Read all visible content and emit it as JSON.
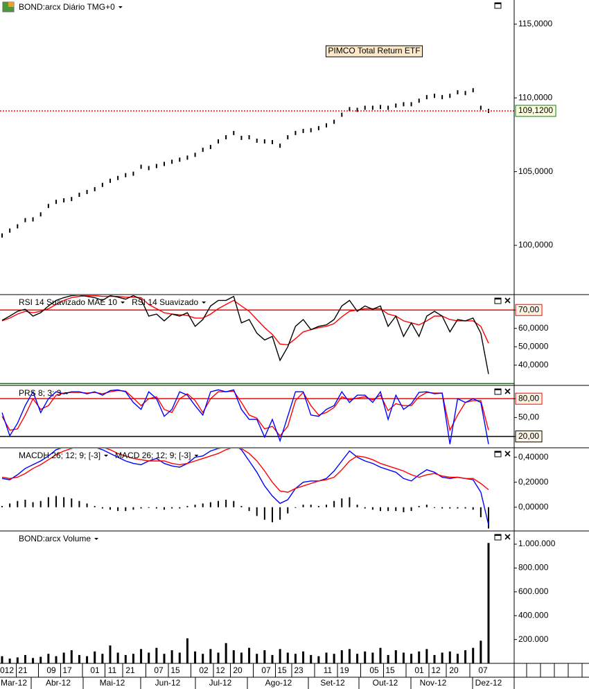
{
  "chart_data": [
    {
      "type": "dot",
      "title": "BOND:arcx Diário TMG+0",
      "annotation": "PIMCO Total Return ETF",
      "color": "#000000",
      "last": {
        "value": 109.12,
        "label": "109,1200",
        "color": "#ff0000"
      },
      "values": [
        100.67,
        101.0,
        101.29,
        101.71,
        101.76,
        102.1,
        102.67,
        102.95,
        103.05,
        103.14,
        103.43,
        103.62,
        103.81,
        104.1,
        104.38,
        104.57,
        104.76,
        104.86,
        105.33,
        105.24,
        105.38,
        105.52,
        105.67,
        105.81,
        105.95,
        106.14,
        106.48,
        106.67,
        107.05,
        107.33,
        107.62,
        107.29,
        107.33,
        107.1,
        107.05,
        107.0,
        106.76,
        107.33,
        107.62,
        107.76,
        107.81,
        107.95,
        108.14,
        108.38,
        108.86,
        109.24,
        109.19,
        109.33,
        109.33,
        109.38,
        109.33,
        109.48,
        109.57,
        109.57,
        109.81,
        110.05,
        110.14,
        110.05,
        110.14,
        110.38,
        110.33,
        110.52,
        109.33,
        109.12
      ],
      "ylim": [
        96.66,
        116.64
      ],
      "yticks": [
        {
          "value": 100,
          "label": "100,0000"
        },
        {
          "value": 105,
          "label": "105,0000"
        },
        {
          "value": 110,
          "label": "110,0000"
        },
        {
          "value": 115,
          "label": "115,0000"
        }
      ]
    },
    {
      "type": "line",
      "series": [
        {
          "name": "RSI 14 Suavizado MAE 10",
          "color": "#ff0000",
          "values": [
            64.1,
            65.6,
            67.8,
            69.3,
            68.5,
            69.3,
            70.7,
            73,
            75.2,
            76.7,
            77.4,
            77.8,
            77.8,
            77.4,
            77.4,
            77.4,
            77,
            77,
            76.7,
            73,
            70.7,
            68.5,
            67.8,
            67.4,
            67,
            65.6,
            65.6,
            67.8,
            70.7,
            73,
            75.2,
            72.2,
            69.3,
            64.8,
            60.4,
            56.7,
            51.5,
            51.1,
            54.4,
            58.1,
            59.3,
            60.4,
            61.1,
            62.6,
            66.3,
            69.3,
            70,
            70.7,
            70.7,
            70.7,
            67.8,
            66.7,
            64.1,
            63,
            61.9,
            64.1,
            66.7,
            66.7,
            64.8,
            64.1,
            64.1,
            64.1,
            61.1,
            51.9
          ]
        },
        {
          "name": "RSI 14 Suavizado",
          "color": "#000000",
          "values": [
            64.4,
            66.7,
            69.3,
            70.4,
            66.7,
            68.5,
            72.2,
            75.2,
            76.7,
            77.8,
            78.1,
            77.4,
            76.7,
            75.2,
            77.8,
            77,
            75.9,
            77.8,
            75.9,
            66.7,
            67.8,
            64.1,
            67.8,
            66.7,
            68.5,
            61.1,
            64.8,
            72.2,
            75.2,
            75.2,
            77.4,
            63,
            64.8,
            57.4,
            53.7,
            55.6,
            42.6,
            50,
            61.1,
            64.8,
            59.3,
            61.1,
            61.9,
            64.8,
            72.2,
            75.2,
            69.3,
            72.2,
            70.4,
            72.2,
            61.1,
            66.7,
            55.6,
            63,
            55.6,
            66.7,
            69.3,
            66.7,
            58.1,
            64.8,
            64.1,
            65.6,
            57.4,
            35.2
          ]
        }
      ],
      "levels": [
        {
          "value": 70,
          "color": "#ff0000"
        },
        {
          "value": 30,
          "color": "#008000"
        }
      ],
      "ylim": [
        29,
        78
      ],
      "yticks": [
        {
          "value": 40,
          "label": "40,0000"
        },
        {
          "value": 50,
          "label": "50,0000"
        },
        {
          "value": 60,
          "label": "60,0000"
        },
        {
          "value": 70,
          "label": "70,00"
        }
      ]
    },
    {
      "type": "line",
      "series": [
        {
          "color": "#ff0000",
          "values": [
            52,
            30,
            32,
            54,
            80,
            63,
            69,
            85.6,
            88.9,
            90,
            90,
            88.9,
            90,
            87.8,
            91,
            93,
            92,
            81,
            69,
            80,
            83,
            63,
            58,
            80,
            87.8,
            77,
            58,
            80,
            91,
            91,
            92,
            74,
            54,
            49,
            32,
            36,
            21,
            36,
            77,
            90,
            69,
            54,
            58,
            66,
            83,
            78,
            81,
            83,
            78,
            85.6,
            61,
            72,
            69,
            69,
            83,
            90,
            88.9,
            88.9,
            30,
            54,
            74,
            77,
            77,
            30
          ]
        },
        {
          "name": "PRS 8; 3; 3",
          "color": "#0000ff",
          "values": [
            57.8,
            21.1,
            41,
            68.9,
            91,
            57.8,
            80,
            91,
            87.8,
            91,
            91,
            87.8,
            91,
            85.6,
            93,
            94,
            91,
            74,
            63,
            91,
            80,
            52,
            63,
            91,
            85.6,
            69,
            54,
            91,
            94,
            91,
            94,
            63,
            47,
            47,
            19,
            47,
            13,
            52,
            91,
            91,
            54,
            52,
            63,
            69,
            91,
            74,
            85.6,
            85.6,
            74,
            91,
            47,
            85.6,
            63,
            72,
            90,
            91,
            87.8,
            88.9,
            7.8,
            80,
            74,
            80,
            74,
            7.8
          ]
        }
      ],
      "levels": [
        {
          "value": 80,
          "color": "#ff0000"
        },
        {
          "value": 20,
          "color": "#000000"
        }
      ],
      "ylim": [
        2,
        100
      ],
      "yticks": [
        {
          "value": 20,
          "label": "20,00"
        },
        {
          "value": 50,
          "label": "50,00"
        },
        {
          "value": 80,
          "label": "80,00"
        }
      ]
    },
    {
      "type": "line",
      "series": [
        {
          "name": "MACDH 26; 12; 9; [-3]",
          "type": "bar",
          "color": "#000000",
          "values": [
            0.01,
            0.03,
            0.05,
            0.06,
            0.04,
            0.05,
            0.08,
            0.09,
            0.08,
            0.07,
            0.05,
            0.03,
            0.01,
            -0.01,
            -0.02,
            -0.03,
            -0.03,
            -0.02,
            -0.01,
            0.0,
            -0.01,
            -0.02,
            -0.01,
            -0.01,
            0.01,
            0.02,
            0.03,
            0.04,
            0.05,
            0.06,
            0.05,
            0.01,
            -0.03,
            -0.07,
            -0.1,
            -0.12,
            -0.1,
            -0.05,
            0.0,
            0.02,
            0.02,
            0.01,
            0.02,
            0.05,
            0.07,
            0.08,
            0.02,
            -0.01,
            -0.02,
            -0.03,
            -0.03,
            -0.03,
            -0.04,
            -0.03,
            0.01,
            0.02,
            0.0,
            -0.01,
            -0.01,
            -0.01,
            -0.01,
            -0.02,
            -0.08,
            -0.17
          ]
        },
        {
          "name": "MACD 26; 12; 9; [-3]",
          "color": "#0000ff",
          "values": [
            0.23,
            0.22,
            0.26,
            0.31,
            0.34,
            0.37,
            0.41,
            0.46,
            0.48,
            0.5,
            0.51,
            0.52,
            0.48,
            0.46,
            0.43,
            0.4,
            0.37,
            0.35,
            0.34,
            0.37,
            0.39,
            0.35,
            0.33,
            0.32,
            0.35,
            0.4,
            0.41,
            0.45,
            0.47,
            0.48,
            0.5,
            0.46,
            0.37,
            0.28,
            0.17,
            0.09,
            0.03,
            0.06,
            0.15,
            0.2,
            0.21,
            0.21,
            0.23,
            0.29,
            0.37,
            0.45,
            0.4,
            0.37,
            0.35,
            0.32,
            0.3,
            0.28,
            0.23,
            0.21,
            0.26,
            0.3,
            0.28,
            0.24,
            0.23,
            0.24,
            0.23,
            0.22,
            0.12,
            -0.14
          ]
        },
        {
          "color": "#ff0000",
          "values": [
            0.24,
            0.23,
            0.24,
            0.27,
            0.31,
            0.34,
            0.38,
            0.42,
            0.45,
            0.47,
            0.49,
            0.5,
            0.5,
            0.48,
            0.46,
            0.43,
            0.41,
            0.39,
            0.38,
            0.37,
            0.37,
            0.37,
            0.35,
            0.34,
            0.35,
            0.37,
            0.39,
            0.41,
            0.43,
            0.46,
            0.48,
            0.47,
            0.43,
            0.37,
            0.29,
            0.2,
            0.13,
            0.12,
            0.15,
            0.17,
            0.19,
            0.21,
            0.22,
            0.24,
            0.3,
            0.37,
            0.41,
            0.4,
            0.38,
            0.35,
            0.33,
            0.31,
            0.29,
            0.26,
            0.24,
            0.26,
            0.27,
            0.25,
            0.24,
            0.24,
            0.23,
            0.23,
            0.19,
            0.14
          ]
        }
      ],
      "ylim": [
        -0.19,
        0.47
      ],
      "yticks": [
        {
          "value": 0,
          "label": "0,00000"
        },
        {
          "value": 0.2,
          "label": "0,20000"
        },
        {
          "value": 0.4,
          "label": "0,40000"
        }
      ]
    },
    {
      "type": "bar",
      "title": "BOND:arcx Volume",
      "color": "#000000",
      "values": [
        60000,
        40000,
        50000,
        70000,
        45000,
        55000,
        80000,
        60000,
        90000,
        110000,
        70000,
        60000,
        100000,
        80000,
        150000,
        90000,
        70000,
        80000,
        120000,
        90000,
        130000,
        80000,
        110000,
        90000,
        210000,
        100000,
        80000,
        120000,
        90000,
        170000,
        110000,
        90000,
        130000,
        80000,
        110000,
        70000,
        120000,
        90000,
        80000,
        100000,
        70000,
        60000,
        90000,
        80000,
        110000,
        120000,
        80000,
        100000,
        90000,
        130000,
        70000,
        110000,
        90000,
        80000,
        100000,
        120000,
        70000,
        90000,
        100000,
        80000,
        110000,
        130000,
        190000,
        1010000
      ],
      "ylim": [
        0,
        1105000
      ],
      "yticks": [
        {
          "value": 200000,
          "label": "200.000"
        },
        {
          "value": 400000,
          "label": "400.000"
        },
        {
          "value": 600000,
          "label": "600.000"
        },
        {
          "value": 800000,
          "label": "800.000"
        },
        {
          "value": 1000000,
          "label": "1.000.000"
        }
      ]
    }
  ],
  "date_axis": {
    "days": [
      "012",
      "21",
      "09",
      "17",
      "01",
      "11",
      "21",
      "07",
      "15",
      "02",
      "12",
      "20",
      "07",
      "15",
      "23",
      "11",
      "19",
      "05",
      "15",
      "01",
      "12",
      "20",
      "07"
    ],
    "months": [
      "Mar-12",
      "Abr-12",
      "Mai-12",
      "Jun-12",
      "Jul-12",
      "Ago-12",
      "Set-12",
      "Out-12",
      "Nov-12",
      "Dez-12"
    ]
  }
}
